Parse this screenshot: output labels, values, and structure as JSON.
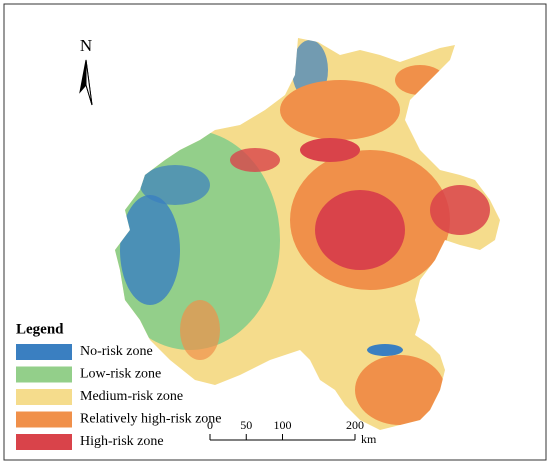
{
  "north_label": "N",
  "legend": {
    "title": "Legend",
    "items": [
      {
        "label": "No-risk zone",
        "color": "#3a7fc1"
      },
      {
        "label": "Low-risk zone",
        "color": "#93cf8a"
      },
      {
        "label": "Medium-risk zone",
        "color": "#f5dc8c"
      },
      {
        "label": "Relatively high-risk zone",
        "color": "#f0904a"
      },
      {
        "label": "High-risk zone",
        "color": "#d9434a"
      }
    ]
  },
  "scale_bar": {
    "ticks": [
      0,
      50,
      100,
      200
    ],
    "unit": "km"
  }
}
